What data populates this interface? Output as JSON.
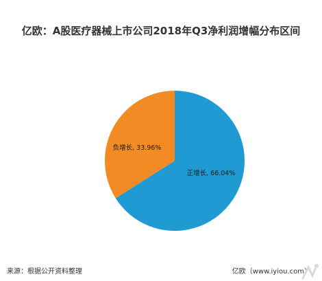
{
  "chart_data": {
    "type": "pie",
    "title": "亿欧：A股医疗器械上市公司2018年Q3净利润增幅分布区间",
    "slices": [
      {
        "label": "正增长, 66.04%",
        "value": 66.04,
        "color": "#1f9ad2"
      },
      {
        "label": "负增长, 33.96%",
        "value": 33.96,
        "color": "#f28b23"
      }
    ]
  },
  "footer": {
    "source": "来源：根据公开资料整理",
    "credit": "亿欧（www.iyiou.com）"
  }
}
